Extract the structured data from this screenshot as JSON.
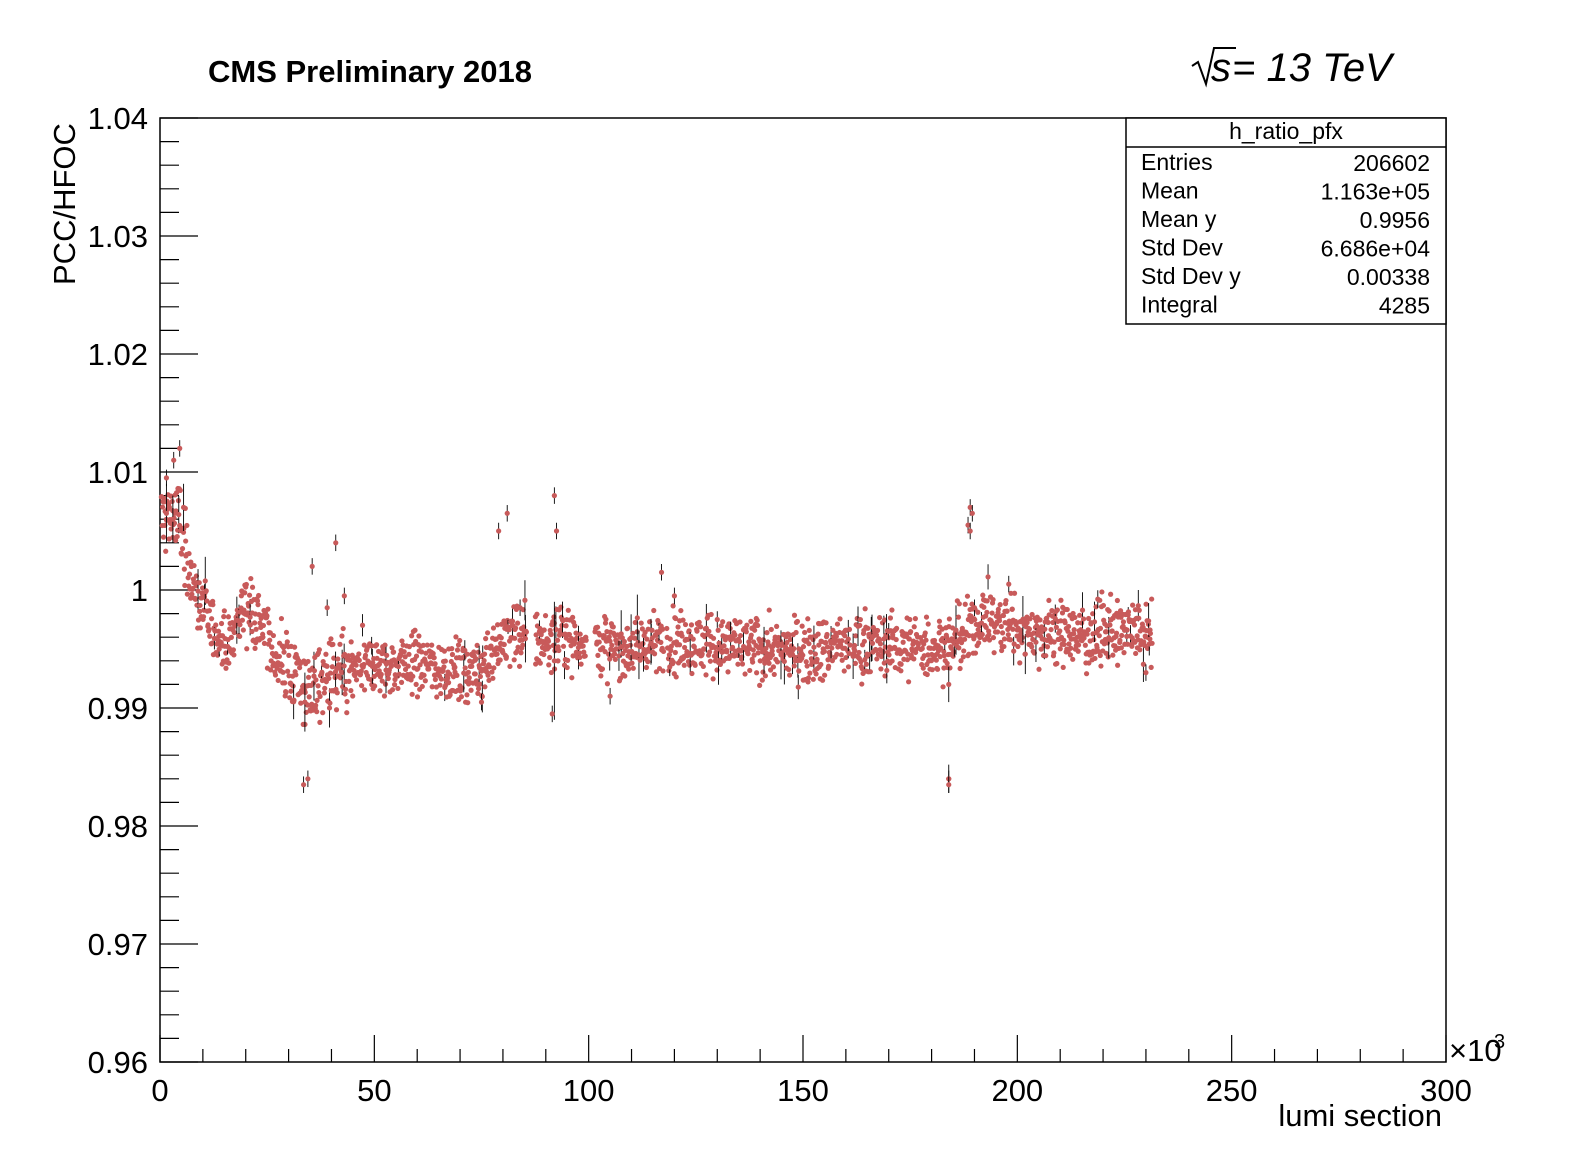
{
  "header": {
    "experiment_label": "CMS Preliminary 2018",
    "energy_prefix": "s",
    "energy_suffix": " = 13 TeV"
  },
  "stats_box": {
    "title": "h_ratio_pfx",
    "rows": [
      {
        "label": "Entries",
        "value": "206602"
      },
      {
        "label": "Mean",
        "value": "1.163e+05"
      },
      {
        "label": "Mean y",
        "value": "0.9956"
      },
      {
        "label": "Std Dev",
        "value": "6.686e+04"
      },
      {
        "label": "Std Dev y",
        "value": "0.00338"
      },
      {
        "label": "Integral",
        "value": "4285"
      }
    ]
  },
  "colors": {
    "marker": "#c85a5a",
    "errorbar": "#000000",
    "frame": "#000000"
  },
  "chart_data": {
    "type": "scatter",
    "title": "",
    "xlabel": "lumi section",
    "ylabel": "PCC/HFOC",
    "x_multiplier_label": "×10",
    "x_multiplier_exp": "3",
    "xlim": [
      0,
      300
    ],
    "ylim": [
      0.96,
      1.04
    ],
    "xticks": [
      0,
      50,
      100,
      150,
      200,
      250,
      300
    ],
    "xtick_labels": [
      "0",
      "50",
      "100",
      "150",
      "200",
      "250",
      "300"
    ],
    "yticks": [
      0.96,
      0.97,
      0.98,
      0.99,
      1.0,
      1.01,
      1.02,
      1.03,
      1.04
    ],
    "ytick_labels": [
      "0.96",
      "0.97",
      "0.98",
      "0.99",
      "1",
      "1.01",
      "1.02",
      "1.03",
      "1.04"
    ],
    "grid": false,
    "trend": [
      [
        0,
        1.006
      ],
      [
        3,
        1.0065
      ],
      [
        5,
        1.005
      ],
      [
        8,
        1.0
      ],
      [
        10,
        0.998
      ],
      [
        13,
        0.9965
      ],
      [
        16,
        0.995
      ],
      [
        18,
        0.9975
      ],
      [
        20,
        0.999
      ],
      [
        22,
        0.998
      ],
      [
        25,
        0.996
      ],
      [
        28,
        0.9935
      ],
      [
        31,
        0.993
      ],
      [
        34,
        0.9915
      ],
      [
        37,
        0.992
      ],
      [
        40,
        0.9925
      ],
      [
        45,
        0.993
      ],
      [
        50,
        0.9935
      ],
      [
        55,
        0.9935
      ],
      [
        60,
        0.994
      ],
      [
        65,
        0.9935
      ],
      [
        70,
        0.993
      ],
      [
        75,
        0.9935
      ],
      [
        78,
        0.995
      ],
      [
        82,
        0.9965
      ],
      [
        88,
        0.9955
      ],
      [
        95,
        0.996
      ],
      [
        102,
        0.9955
      ],
      [
        106,
        0.995
      ],
      [
        115,
        0.9955
      ],
      [
        125,
        0.9955
      ],
      [
        135,
        0.995
      ],
      [
        150,
        0.995
      ],
      [
        165,
        0.9955
      ],
      [
        180,
        0.995
      ],
      [
        186,
        0.9955
      ],
      [
        192,
        0.9975
      ],
      [
        198,
        0.997
      ],
      [
        205,
        0.9965
      ],
      [
        215,
        0.996
      ],
      [
        225,
        0.9965
      ],
      [
        231,
        0.9962
      ]
    ],
    "outliers": [
      [
        1.5,
        1.0095
      ],
      [
        3.2,
        1.011
      ],
      [
        4.6,
        1.012
      ],
      [
        33.5,
        0.9835
      ],
      [
        34.5,
        0.984
      ],
      [
        35.5,
        1.002
      ],
      [
        41,
        1.004
      ],
      [
        43,
        0.9995
      ],
      [
        39,
        0.9985
      ],
      [
        79,
        1.005
      ],
      [
        81,
        1.0065
      ],
      [
        84,
        0.9985
      ],
      [
        92,
        1.008
      ],
      [
        92.5,
        1.005
      ],
      [
        91.5,
        0.9895
      ],
      [
        105,
        0.991
      ],
      [
        117,
        1.0015
      ],
      [
        120,
        0.9995
      ],
      [
        189,
        1.007
      ],
      [
        189.5,
        1.0065
      ],
      [
        188.5,
        1.0055
      ],
      [
        189,
        1.005
      ],
      [
        184,
        0.984
      ],
      [
        184,
        0.9835
      ],
      [
        190,
        0.9985
      ],
      [
        198,
        1.0005
      ],
      [
        230,
        0.993
      ],
      [
        170,
        0.9965
      ],
      [
        130,
        0.9975
      ],
      [
        75,
        0.9905
      ]
    ]
  }
}
